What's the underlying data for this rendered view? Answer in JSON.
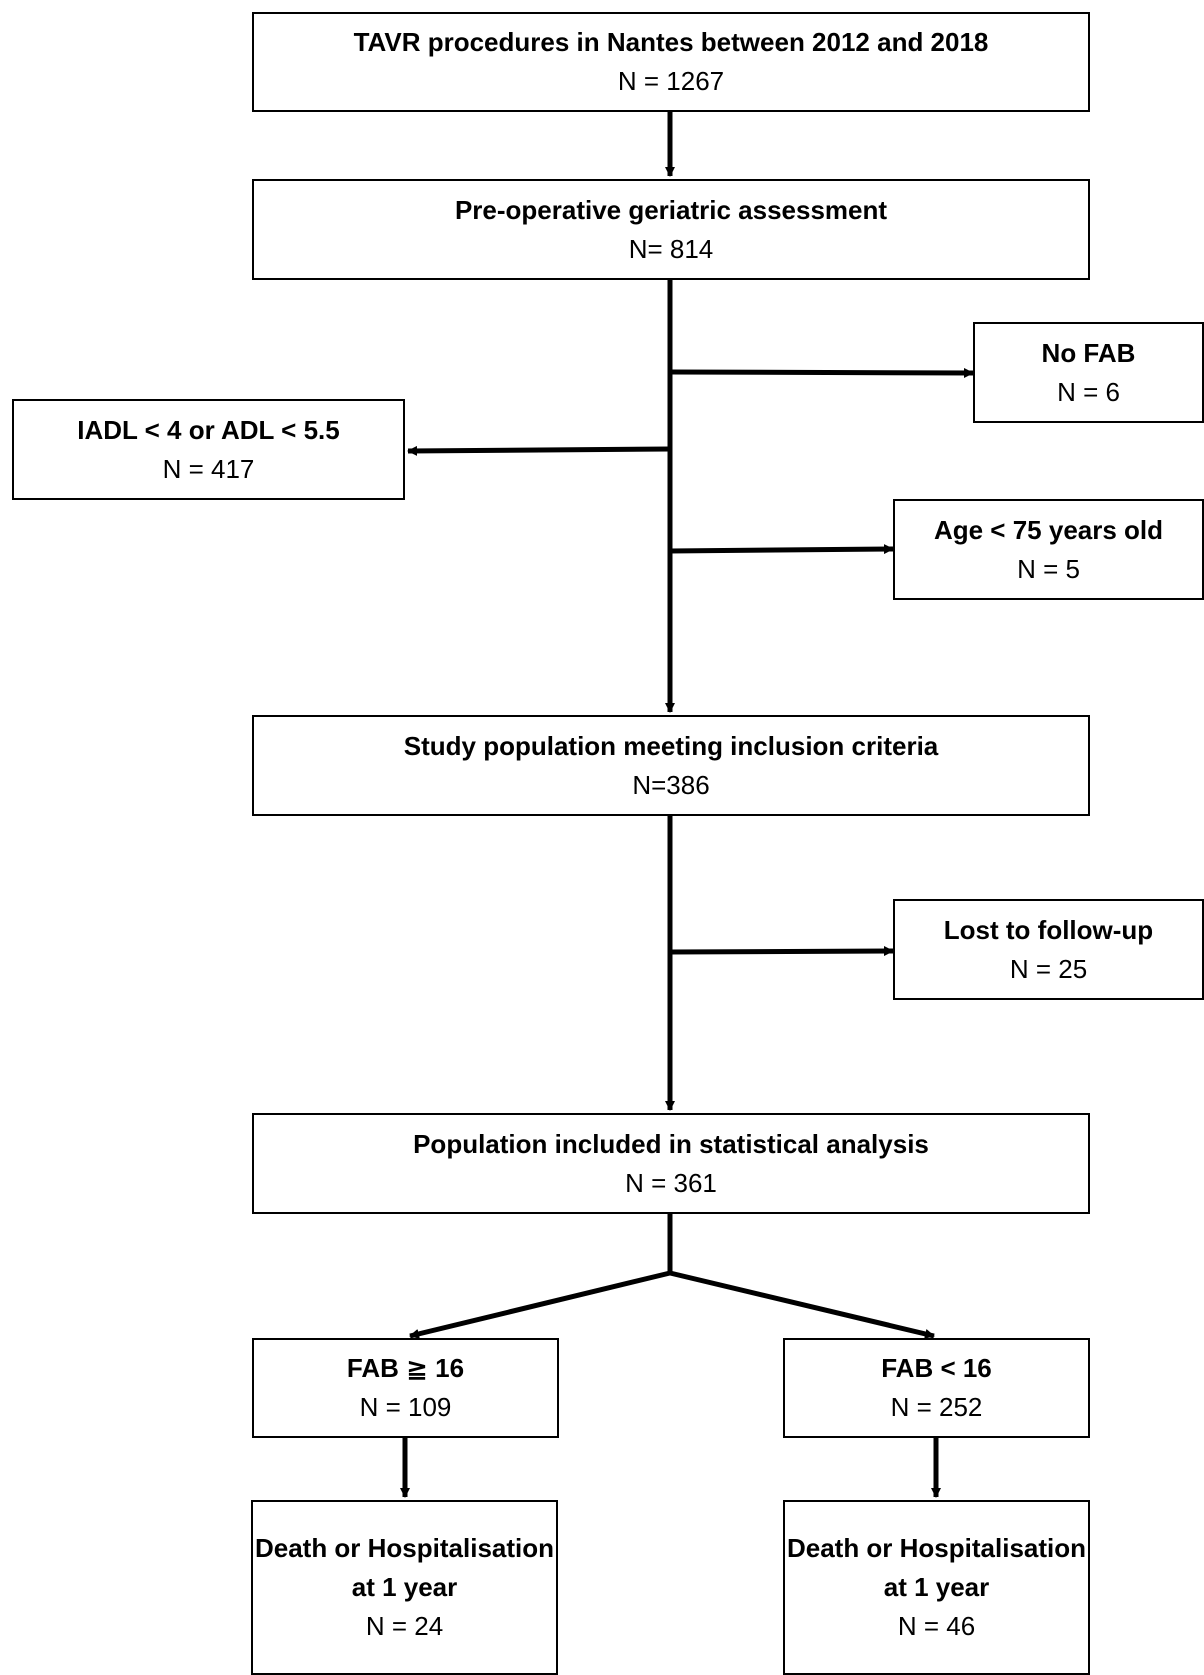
{
  "nodes": {
    "tavr": {
      "title": "TAVR procedures in Nantes between 2012 and 2018",
      "count": "N = 1267"
    },
    "preop": {
      "title": "Pre-operative geriatric assessment",
      "count": "N= 814"
    },
    "no_fab": {
      "title": "No FAB",
      "count": "N = 6"
    },
    "iadl": {
      "title": "IADL < 4 or ADL < 5.5",
      "count": "N = 417"
    },
    "age": {
      "title": "Age < 75 years old",
      "count": "N = 5"
    },
    "study": {
      "title": "Study population meeting inclusion criteria",
      "count": "N=386"
    },
    "lost": {
      "title": "Lost to follow-up",
      "count": "N = 25"
    },
    "analysis": {
      "title": "Population included in statistical analysis",
      "count": "N = 361"
    },
    "fab_high": {
      "title": "FAB ≧ 16",
      "count": "N = 109"
    },
    "fab_low": {
      "title": "FAB < 16",
      "count": "N = 252"
    },
    "outcome_high": {
      "title": "Death or Hospitalisation at 1 year",
      "count": "N = 24"
    },
    "outcome_low": {
      "title": "Death or Hospitalisation at 1 year",
      "count": "N = 46"
    }
  }
}
